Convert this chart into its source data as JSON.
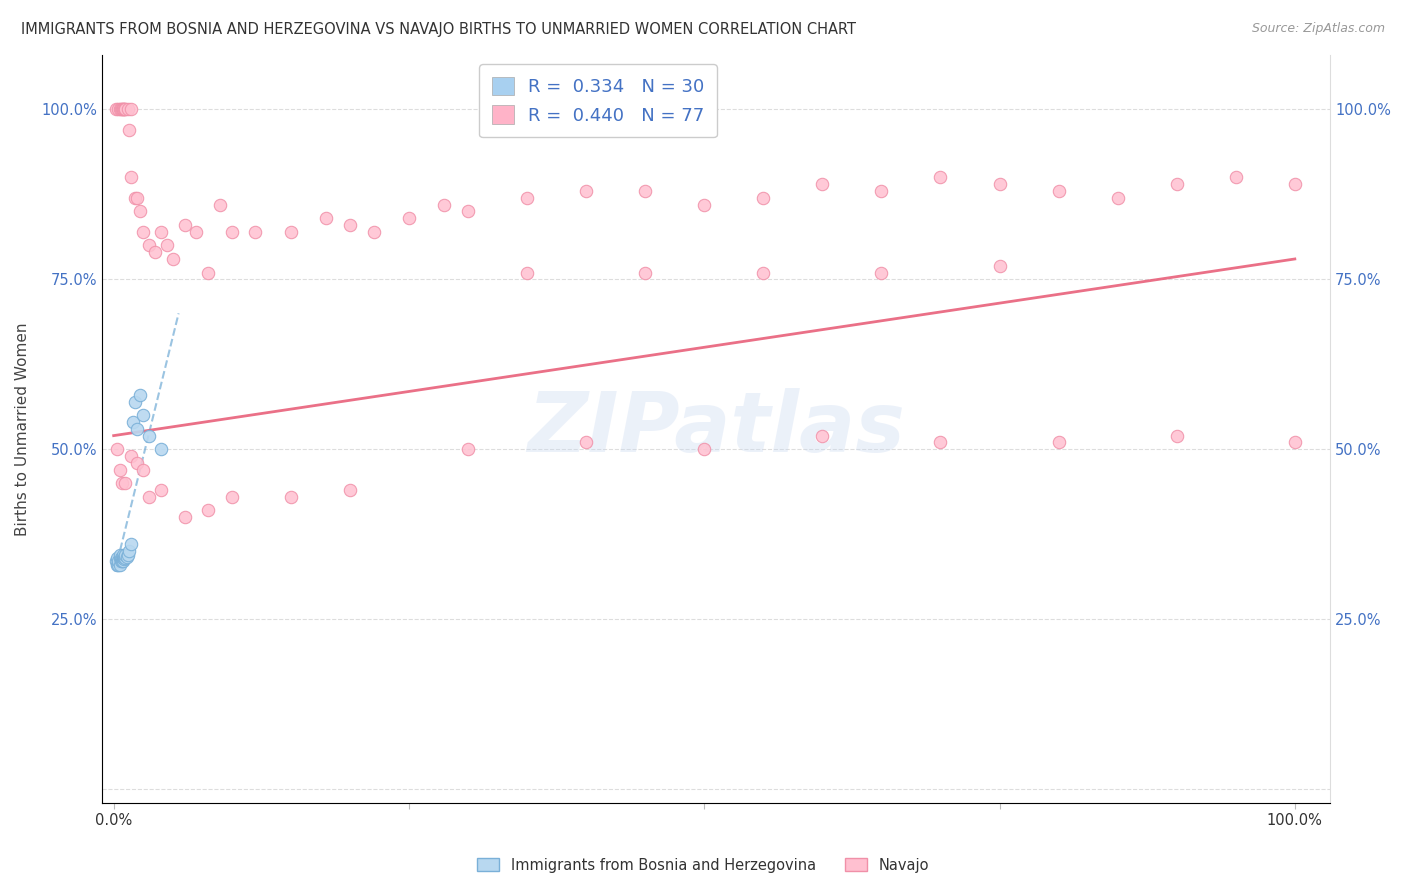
{
  "title": "IMMIGRANTS FROM BOSNIA AND HERZEGOVINA VS NAVAJO BIRTHS TO UNMARRIED WOMEN CORRELATION CHART",
  "source": "Source: ZipAtlas.com",
  "ylabel": "Births to Unmarried Women",
  "watermark": "ZIPatlas",
  "legend_entries": [
    {
      "label": "R =  0.334   N = 30",
      "color": "#a8d0f0"
    },
    {
      "label": "R =  0.440   N = 77",
      "color": "#ffb3c8"
    }
  ],
  "blue_scatter_x": [
    0.002,
    0.003,
    0.003,
    0.004,
    0.004,
    0.005,
    0.005,
    0.005,
    0.006,
    0.006,
    0.007,
    0.007,
    0.008,
    0.008,
    0.008,
    0.009,
    0.009,
    0.01,
    0.01,
    0.011,
    0.012,
    0.013,
    0.015,
    0.016,
    0.018,
    0.02,
    0.022,
    0.025,
    0.03,
    0.04
  ],
  "blue_scatter_y": [
    0.335,
    0.33,
    0.34,
    0.33,
    0.335,
    0.33,
    0.34,
    0.345,
    0.335,
    0.34,
    0.335,
    0.34,
    0.335,
    0.34,
    0.345,
    0.338,
    0.342,
    0.34,
    0.345,
    0.342,
    0.345,
    0.35,
    0.36,
    0.54,
    0.57,
    0.53,
    0.58,
    0.55,
    0.52,
    0.5
  ],
  "pink_scatter_x": [
    0.002,
    0.004,
    0.005,
    0.006,
    0.007,
    0.008,
    0.008,
    0.009,
    0.01,
    0.01,
    0.012,
    0.013,
    0.015,
    0.015,
    0.018,
    0.02,
    0.022,
    0.025,
    0.03,
    0.035,
    0.04,
    0.045,
    0.05,
    0.06,
    0.07,
    0.08,
    0.09,
    0.1,
    0.12,
    0.15,
    0.18,
    0.2,
    0.22,
    0.25,
    0.28,
    0.3,
    0.35,
    0.4,
    0.45,
    0.5,
    0.55,
    0.6,
    0.65,
    0.7,
    0.75,
    0.8,
    0.85,
    0.9,
    0.95,
    1.0,
    0.003,
    0.005,
    0.007,
    0.01,
    0.015,
    0.02,
    0.025,
    0.03,
    0.04,
    0.06,
    0.08,
    0.1,
    0.15,
    0.2,
    0.3,
    0.4,
    0.5,
    0.6,
    0.7,
    0.8,
    0.9,
    1.0,
    0.55,
    0.65,
    0.75,
    0.45,
    0.35
  ],
  "pink_scatter_y": [
    1.0,
    1.0,
    1.0,
    1.0,
    1.0,
    1.0,
    1.0,
    1.0,
    1.0,
    1.0,
    1.0,
    0.97,
    0.9,
    1.0,
    0.87,
    0.87,
    0.85,
    0.82,
    0.8,
    0.79,
    0.82,
    0.8,
    0.78,
    0.83,
    0.82,
    0.76,
    0.86,
    0.82,
    0.82,
    0.82,
    0.84,
    0.83,
    0.82,
    0.84,
    0.86,
    0.85,
    0.87,
    0.88,
    0.88,
    0.86,
    0.87,
    0.89,
    0.88,
    0.9,
    0.89,
    0.88,
    0.87,
    0.89,
    0.9,
    0.89,
    0.5,
    0.47,
    0.45,
    0.45,
    0.49,
    0.48,
    0.47,
    0.43,
    0.44,
    0.4,
    0.41,
    0.43,
    0.43,
    0.44,
    0.5,
    0.51,
    0.5,
    0.52,
    0.51,
    0.51,
    0.52,
    0.51,
    0.76,
    0.76,
    0.77,
    0.76,
    0.76
  ]
}
